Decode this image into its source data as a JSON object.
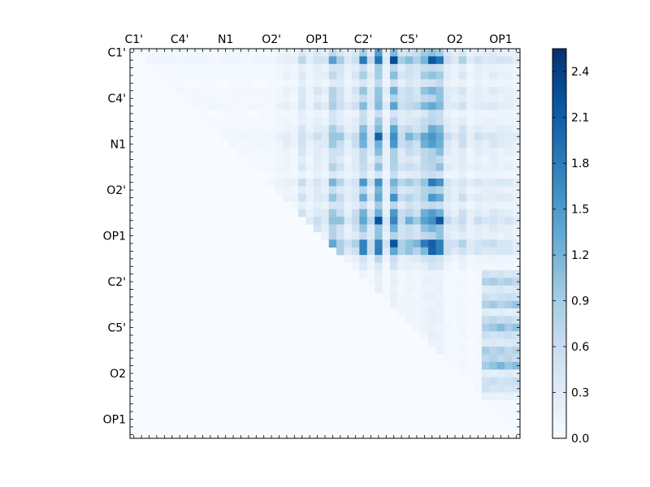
{
  "chart_data": {
    "type": "heatmap",
    "title": "",
    "n": 51,
    "x_tick_labels": [
      "C1'",
      "C4'",
      "N1",
      "O2'",
      "OP1",
      "C2'",
      "C5'",
      "O2",
      "OP1"
    ],
    "y_tick_labels": [
      "C1'",
      "C4'",
      "N1",
      "O2'",
      "OP1",
      "C2'",
      "C5'",
      "O2",
      "OP1"
    ],
    "tick_label_index": [
      0,
      6,
      12,
      18,
      24,
      30,
      36,
      42,
      48
    ],
    "colorbar": {
      "min": 0.0,
      "max": 2.55,
      "ticks": [
        "0.0",
        "0.3",
        "0.6",
        "0.9",
        "1.2",
        "1.5",
        "1.8",
        "2.1",
        "2.4"
      ],
      "tick_values": [
        0.0,
        0.3,
        0.6,
        0.9,
        1.2,
        1.5,
        1.8,
        2.1,
        2.4
      ],
      "colormap": "Blues"
    },
    "profile": {
      "base": [
        0.1,
        0.1,
        0.1,
        0.1,
        0.1,
        0.1,
        0.1,
        0.1,
        0.1,
        0.1,
        0.1,
        0.1,
        0.1,
        0.1,
        0.1,
        0.1,
        0.1,
        0.1,
        0.1,
        0.2,
        0.3,
        0.2,
        0.7,
        0.3,
        0.6,
        0.4,
        1.3,
        0.9,
        0.4,
        0.7,
        1.6,
        0.6,
        2.0,
        0.4,
        1.9,
        0.8,
        1.1,
        0.9,
        1.5,
        1.9,
        1.8,
        0.6,
        0.4,
        0.7,
        0.3,
        0.5,
        0.4,
        0.5,
        0.4,
        0.4,
        0.3
      ],
      "rowscale": [
        0.6,
        1.0,
        0.4,
        0.5,
        0.3,
        0.6,
        0.5,
        0.7,
        0.3,
        0.4,
        0.6,
        0.9,
        0.7,
        0.5,
        0.4,
        0.5,
        0.3,
        0.8,
        0.5,
        0.7,
        0.4,
        0.7,
        1.0,
        0.6,
        0.5,
        1.1,
        0.9,
        0.3,
        0.2,
        0.1,
        0.1,
        0.1,
        0.1,
        0.1,
        0.1,
        0.1,
        0.1,
        0.1,
        0.1,
        0.1,
        0.1,
        0.1,
        0.1,
        0.1,
        0.1,
        0.1,
        0.1,
        0.1,
        0.1,
        0.1,
        0.1
      ],
      "upper_block": {
        "rows": [
          29,
          45
        ],
        "cols": [
          46,
          50
        ],
        "values": [
          0.5,
          0.9,
          0.4,
          0.6,
          1.0,
          0.3,
          0.7,
          1.1,
          0.6,
          0.4,
          0.9,
          0.8,
          1.2,
          0.3,
          0.6,
          0.5,
          0.2
        ]
      },
      "min_display": 0.03
    }
  }
}
